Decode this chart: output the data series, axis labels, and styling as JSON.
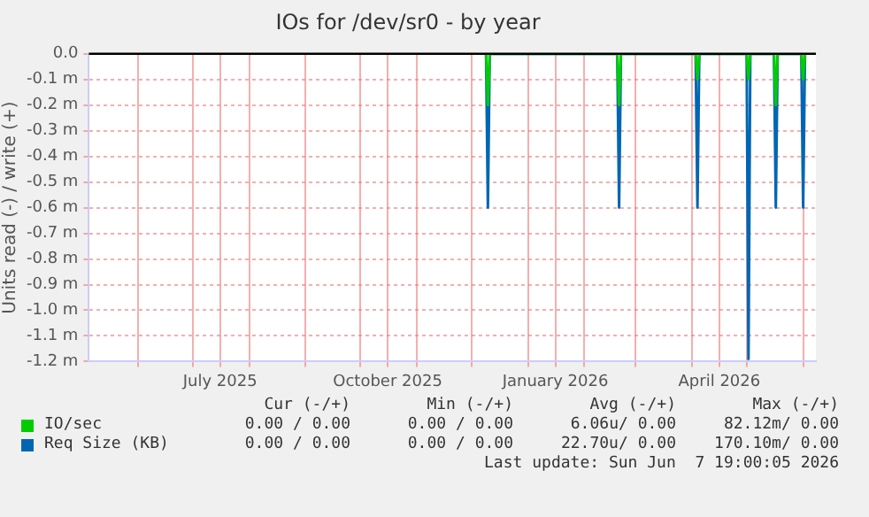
{
  "chart_data": {
    "type": "line",
    "title": "IOs for /dev/sr0 - by year",
    "ylabel": "Units read (-) / write (+)",
    "xlim": [
      "2025-05-05",
      "2026-06-08"
    ],
    "xticks": [
      {
        "value": "2025-06-01",
        "label": null
      },
      {
        "value": "2025-07-01",
        "label": null
      },
      {
        "value": "2025-07-16",
        "label": "July 2025"
      },
      {
        "value": "2025-08-01",
        "label": null
      },
      {
        "value": "2025-09-01",
        "label": null
      },
      {
        "value": "2025-10-01",
        "label": null
      },
      {
        "value": "2025-10-16",
        "label": "October 2025"
      },
      {
        "value": "2025-11-01",
        "label": null
      },
      {
        "value": "2025-12-01",
        "label": null
      },
      {
        "value": "2026-01-01",
        "label": null
      },
      {
        "value": "2026-01-16",
        "label": "January 2026"
      },
      {
        "value": "2026-02-01",
        "label": null
      },
      {
        "value": "2026-03-01",
        "label": null
      },
      {
        "value": "2026-04-01",
        "label": null
      },
      {
        "value": "2026-04-16",
        "label": "April 2026"
      },
      {
        "value": "2026-05-01",
        "label": null
      },
      {
        "value": "2026-06-01",
        "label": null
      }
    ],
    "ylim": [
      -1.2,
      0
    ],
    "yticks": [
      {
        "value": 0,
        "label": "0.0"
      },
      {
        "value": -0.1,
        "label": "-0.1 m"
      },
      {
        "value": -0.2,
        "label": "-0.2 m"
      },
      {
        "value": -0.3,
        "label": "-0.3 m"
      },
      {
        "value": -0.4,
        "label": "-0.4 m"
      },
      {
        "value": -0.5,
        "label": "-0.5 m"
      },
      {
        "value": -0.6,
        "label": "-0.6 m"
      },
      {
        "value": -0.7,
        "label": "-0.7 m"
      },
      {
        "value": -0.8,
        "label": "-0.8 m"
      },
      {
        "value": -0.9,
        "label": "-0.9 m"
      },
      {
        "value": -1.0,
        "label": "-1.0 m"
      },
      {
        "value": -1.1,
        "label": "-1.1 m"
      },
      {
        "value": -1.2,
        "label": "-1.2 m"
      }
    ],
    "grid": true,
    "legend": "bottom",
    "marker": "none",
    "line_style": "solid",
    "ref_lines": [
      {
        "axis": "y",
        "value": 0,
        "color": "#000000"
      }
    ],
    "series": [
      {
        "name": "IO/sec",
        "color": "#00cc00",
        "x": [
          "2025-12-09",
          "2025-12-10",
          "2025-12-11",
          "2026-02-19",
          "2026-02-20",
          "2026-02-21",
          "2026-04-03",
          "2026-04-04",
          "2026-04-05",
          "2026-05-01",
          "2026-05-02",
          "2026-05-03",
          "2026-05-16",
          "2026-05-17",
          "2026-05-18",
          "2026-05-31",
          "2026-06-01",
          "2026-06-02"
        ],
        "values": [
          0,
          -0.2,
          0,
          0,
          -0.2,
          0,
          0,
          -0.1,
          0,
          0,
          -0.1,
          0,
          0,
          -0.2,
          0,
          0,
          -0.1,
          0
        ]
      },
      {
        "name": "Req Size (KB)",
        "color": "#0066b3",
        "x": [
          "2025-12-09",
          "2025-12-10",
          "2025-12-11",
          "2026-02-19",
          "2026-02-20",
          "2026-02-21",
          "2026-04-03",
          "2026-04-04",
          "2026-04-05",
          "2026-05-01",
          "2026-05-02",
          "2026-05-03",
          "2026-05-16",
          "2026-05-17",
          "2026-05-18",
          "2026-05-31",
          "2026-06-01",
          "2026-06-02"
        ],
        "values": [
          0,
          -0.6,
          0,
          0,
          -0.6,
          0,
          0,
          -0.6,
          0,
          0,
          -1.19,
          0,
          0,
          -0.6,
          0,
          0,
          -0.6,
          0
        ]
      }
    ],
    "annotations": [
      "Cur (-/+)",
      "Min (-/+)",
      "Avg (-/+)",
      "Max (-/+)",
      "0.00 / 0.00",
      "0.00 / 0.00",
      "6.06u/ 0.00",
      "82.12m/ 0.00",
      "0.00 / 0.00",
      "0.00 / 0.00",
      "22.70u/ 0.00",
      "170.10m/ 0.00",
      "Last update: Sun Jun  7 19:00:05 2026"
    ]
  }
}
